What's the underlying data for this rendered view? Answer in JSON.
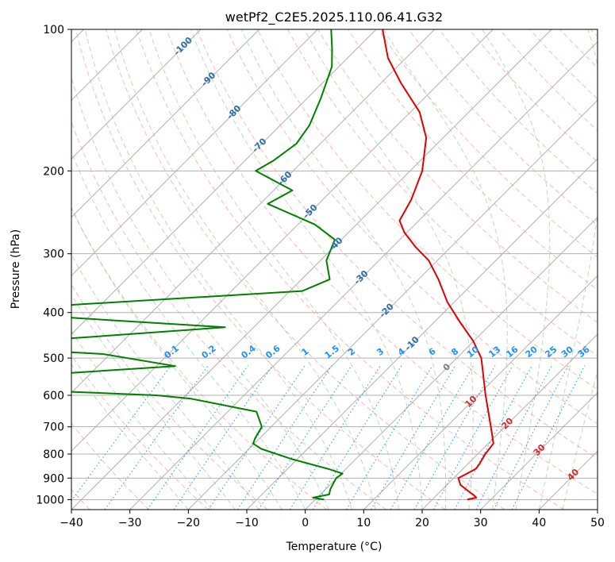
{
  "chart_data": {
    "type": "line",
    "title": "wetPf2_C2E5.2025.110.06.41.G32",
    "xlabel": "Temperature (°C)",
    "ylabel": "Pressure (hPa)",
    "xlim": [
      -40,
      50
    ],
    "ylim": [
      1050,
      100
    ],
    "y_scale": "log",
    "grid": true,
    "x_ticks": [
      -40,
      -30,
      -20,
      -10,
      0,
      10,
      20,
      30,
      40,
      50
    ],
    "y_ticks": [
      100,
      200,
      300,
      400,
      500,
      600,
      700,
      800,
      900,
      1000
    ],
    "series": [
      {
        "color": "#e00000",
        "points": [
          [
            1000,
            26.0
          ],
          [
            990,
            27.2
          ],
          [
            980,
            26.5
          ],
          [
            960,
            24.8
          ],
          [
            930,
            22.3
          ],
          [
            900,
            20.8
          ],
          [
            880,
            21.5
          ],
          [
            860,
            22.2
          ],
          [
            840,
            22.0
          ],
          [
            800,
            21.3
          ],
          [
            760,
            20.9
          ],
          [
            700,
            17.6
          ],
          [
            600,
            11.3
          ],
          [
            500,
            4.2
          ],
          [
            460,
            -0.1
          ],
          [
            420,
            -5.5
          ],
          [
            380,
            -11.2
          ],
          [
            340,
            -16.6
          ],
          [
            310,
            -21.5
          ],
          [
            290,
            -26.1
          ],
          [
            270,
            -30.5
          ],
          [
            255,
            -33.3
          ],
          [
            230,
            -34.9
          ],
          [
            200,
            -37.9
          ],
          [
            170,
            -42.9
          ],
          [
            150,
            -48.4
          ],
          [
            130,
            -56.6
          ],
          [
            115,
            -63.1
          ],
          [
            100,
            -68.9
          ]
        ]
      },
      {
        "color": "#008000",
        "points": [
          [
            1000,
            1.5
          ],
          [
            990,
            -0.7
          ],
          [
            975,
            1.5
          ],
          [
            950,
            0.8
          ],
          [
            900,
            -0.1
          ],
          [
            880,
            0.2
          ],
          [
            860,
            -3.1
          ],
          [
            820,
            -10.9
          ],
          [
            780,
            -17.9
          ],
          [
            760,
            -20.2
          ],
          [
            740,
            -20.8
          ],
          [
            700,
            -21.6
          ],
          [
            650,
            -25.1
          ],
          [
            610,
            -38.5
          ],
          [
            600,
            -45.0
          ],
          [
            580,
            -75.0
          ],
          [
            545,
            -70.4
          ],
          [
            520,
            -46.8
          ],
          [
            490,
            -61.3
          ],
          [
            480,
            -75.3
          ],
          [
            460,
            -75.3
          ],
          [
            430,
            -44.9
          ],
          [
            410,
            -73.5
          ],
          [
            395,
            -78.0
          ],
          [
            385,
            -74.7
          ],
          [
            360,
            -37.9
          ],
          [
            340,
            -35.2
          ],
          [
            310,
            -39.0
          ],
          [
            280,
            -41.1
          ],
          [
            260,
            -47.1
          ],
          [
            235,
            -58.7
          ],
          [
            220,
            -56.8
          ],
          [
            200,
            -66.4
          ],
          [
            190,
            -65.1
          ],
          [
            175,
            -64.1
          ],
          [
            160,
            -65.0
          ],
          [
            140,
            -67.7
          ],
          [
            120,
            -71.2
          ],
          [
            110,
            -74.2
          ],
          [
            100,
            -77.7
          ]
        ]
      }
    ],
    "isotherm_labels": [
      "-100",
      "-90",
      "-80",
      "-70",
      "-60",
      "-50",
      "-40",
      "-30",
      "-20",
      "-10",
      "0",
      "10",
      "20",
      "30",
      "40"
    ],
    "mixing_ratio_labels": [
      "0.1",
      "0.2",
      "0.4",
      "0.6",
      "1",
      "1.5",
      "2",
      "3",
      "4",
      "6",
      "8",
      "10",
      "13",
      "16",
      "20",
      "25",
      "30",
      "36"
    ],
    "colors": {
      "temperature": "#e00000",
      "dewpoint": "#008000",
      "isotherm_cold": "#2a6ea8",
      "isotherm_zero": "#7f7f7f",
      "isotherm_warm": "#d62728",
      "mixing_ratio": "#1e90ff",
      "dry_adiabat": "#fa8072",
      "moist_adiabat": "#7fbf7f",
      "grid": "#b0b0b0"
    }
  }
}
